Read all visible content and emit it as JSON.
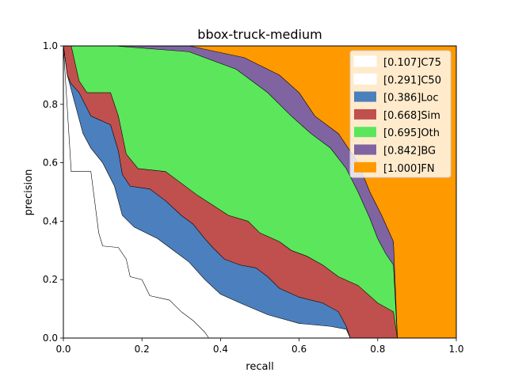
{
  "chart_data": {
    "type": "area",
    "title": "bbox-truck-medium",
    "xlabel": "recall",
    "ylabel": "precision",
    "xlim": [
      0,
      1
    ],
    "ylim": [
      0,
      1
    ],
    "xticks": [
      "0.0",
      "0.2",
      "0.4",
      "0.6",
      "0.8",
      "1.0"
    ],
    "yticks": [
      "0.0",
      "0.2",
      "0.4",
      "0.6",
      "0.8",
      "1.0"
    ],
    "grid": false,
    "legend_position": "top-right",
    "series": [
      {
        "name": "[0.107]C75",
        "color": "#ffffff",
        "points": [
          [
            0,
            1.0
          ],
          [
            0.02,
            0.57
          ],
          [
            0.07,
            0.57
          ],
          [
            0.09,
            0.36
          ],
          [
            0.1,
            0.315
          ],
          [
            0.14,
            0.31
          ],
          [
            0.16,
            0.27
          ],
          [
            0.17,
            0.21
          ],
          [
            0.2,
            0.2
          ],
          [
            0.22,
            0.145
          ],
          [
            0.27,
            0.13
          ],
          [
            0.3,
            0.09
          ],
          [
            0.33,
            0.06
          ],
          [
            0.36,
            0.02
          ],
          [
            0.37,
            0.0
          ]
        ]
      },
      {
        "name": "[0.291]C50",
        "color": "#ffffff",
        "points": [
          [
            0,
            1.0
          ],
          [
            0.01,
            0.9
          ],
          [
            0.03,
            0.8
          ],
          [
            0.05,
            0.7
          ],
          [
            0.07,
            0.65
          ],
          [
            0.1,
            0.6
          ],
          [
            0.13,
            0.52
          ],
          [
            0.15,
            0.42
          ],
          [
            0.18,
            0.38
          ],
          [
            0.24,
            0.34
          ],
          [
            0.28,
            0.3
          ],
          [
            0.32,
            0.26
          ],
          [
            0.36,
            0.2
          ],
          [
            0.4,
            0.15
          ],
          [
            0.45,
            0.12
          ],
          [
            0.52,
            0.08
          ],
          [
            0.6,
            0.05
          ],
          [
            0.68,
            0.04
          ],
          [
            0.72,
            0.03
          ],
          [
            0.73,
            0.0
          ]
        ]
      },
      {
        "name": "[0.386]Loc",
        "color": "#4c7fbd",
        "points": [
          [
            0,
            1.0
          ],
          [
            0.01,
            0.9
          ],
          [
            0.02,
            0.87
          ],
          [
            0.04,
            0.84
          ],
          [
            0.07,
            0.76
          ],
          [
            0.12,
            0.73
          ],
          [
            0.14,
            0.64
          ],
          [
            0.15,
            0.56
          ],
          [
            0.17,
            0.52
          ],
          [
            0.22,
            0.51
          ],
          [
            0.26,
            0.47
          ],
          [
            0.3,
            0.42
          ],
          [
            0.33,
            0.39
          ],
          [
            0.36,
            0.34
          ],
          [
            0.38,
            0.31
          ],
          [
            0.41,
            0.27
          ],
          [
            0.45,
            0.25
          ],
          [
            0.49,
            0.24
          ],
          [
            0.52,
            0.21
          ],
          [
            0.55,
            0.17
          ],
          [
            0.6,
            0.14
          ],
          [
            0.66,
            0.12
          ],
          [
            0.7,
            0.09
          ],
          [
            0.72,
            0.04
          ],
          [
            0.73,
            0.0
          ]
        ]
      },
      {
        "name": "[0.668]Sim",
        "color": "#c0504d",
        "points": [
          [
            0,
            1.0
          ],
          [
            0.02,
            1.0
          ],
          [
            0.04,
            0.88
          ],
          [
            0.06,
            0.84
          ],
          [
            0.12,
            0.84
          ],
          [
            0.14,
            0.76
          ],
          [
            0.16,
            0.63
          ],
          [
            0.19,
            0.58
          ],
          [
            0.26,
            0.57
          ],
          [
            0.34,
            0.49
          ],
          [
            0.42,
            0.42
          ],
          [
            0.47,
            0.4
          ],
          [
            0.5,
            0.36
          ],
          [
            0.55,
            0.33
          ],
          [
            0.58,
            0.3
          ],
          [
            0.62,
            0.28
          ],
          [
            0.66,
            0.25
          ],
          [
            0.7,
            0.21
          ],
          [
            0.75,
            0.18
          ],
          [
            0.8,
            0.12
          ],
          [
            0.84,
            0.09
          ],
          [
            0.85,
            0.0
          ]
        ]
      },
      {
        "name": "[0.695]Oth",
        "color": "#5ce65c",
        "points": [
          [
            0,
            1.0
          ],
          [
            0.13,
            1.0
          ],
          [
            0.32,
            0.98
          ],
          [
            0.44,
            0.92
          ],
          [
            0.52,
            0.84
          ],
          [
            0.58,
            0.76
          ],
          [
            0.63,
            0.7
          ],
          [
            0.68,
            0.65
          ],
          [
            0.72,
            0.58
          ],
          [
            0.75,
            0.5
          ],
          [
            0.78,
            0.41
          ],
          [
            0.8,
            0.34
          ],
          [
            0.82,
            0.29
          ],
          [
            0.84,
            0.25
          ],
          [
            0.85,
            0.0
          ]
        ]
      },
      {
        "name": "[0.842]BG",
        "color": "#8064a2",
        "points": [
          [
            0,
            1.0
          ],
          [
            0.13,
            1.0
          ],
          [
            0.32,
            1.0
          ],
          [
            0.46,
            0.96
          ],
          [
            0.55,
            0.9
          ],
          [
            0.6,
            0.84
          ],
          [
            0.64,
            0.76
          ],
          [
            0.7,
            0.7
          ],
          [
            0.75,
            0.6
          ],
          [
            0.78,
            0.5
          ],
          [
            0.81,
            0.42
          ],
          [
            0.83,
            0.36
          ],
          [
            0.84,
            0.33
          ],
          [
            0.85,
            0.0
          ]
        ]
      },
      {
        "name": "[1.000]FN",
        "color": "#ff9900",
        "points": [
          [
            0,
            1.0
          ],
          [
            0.85,
            1.0
          ],
          [
            1.0,
            1.0
          ]
        ]
      }
    ]
  }
}
